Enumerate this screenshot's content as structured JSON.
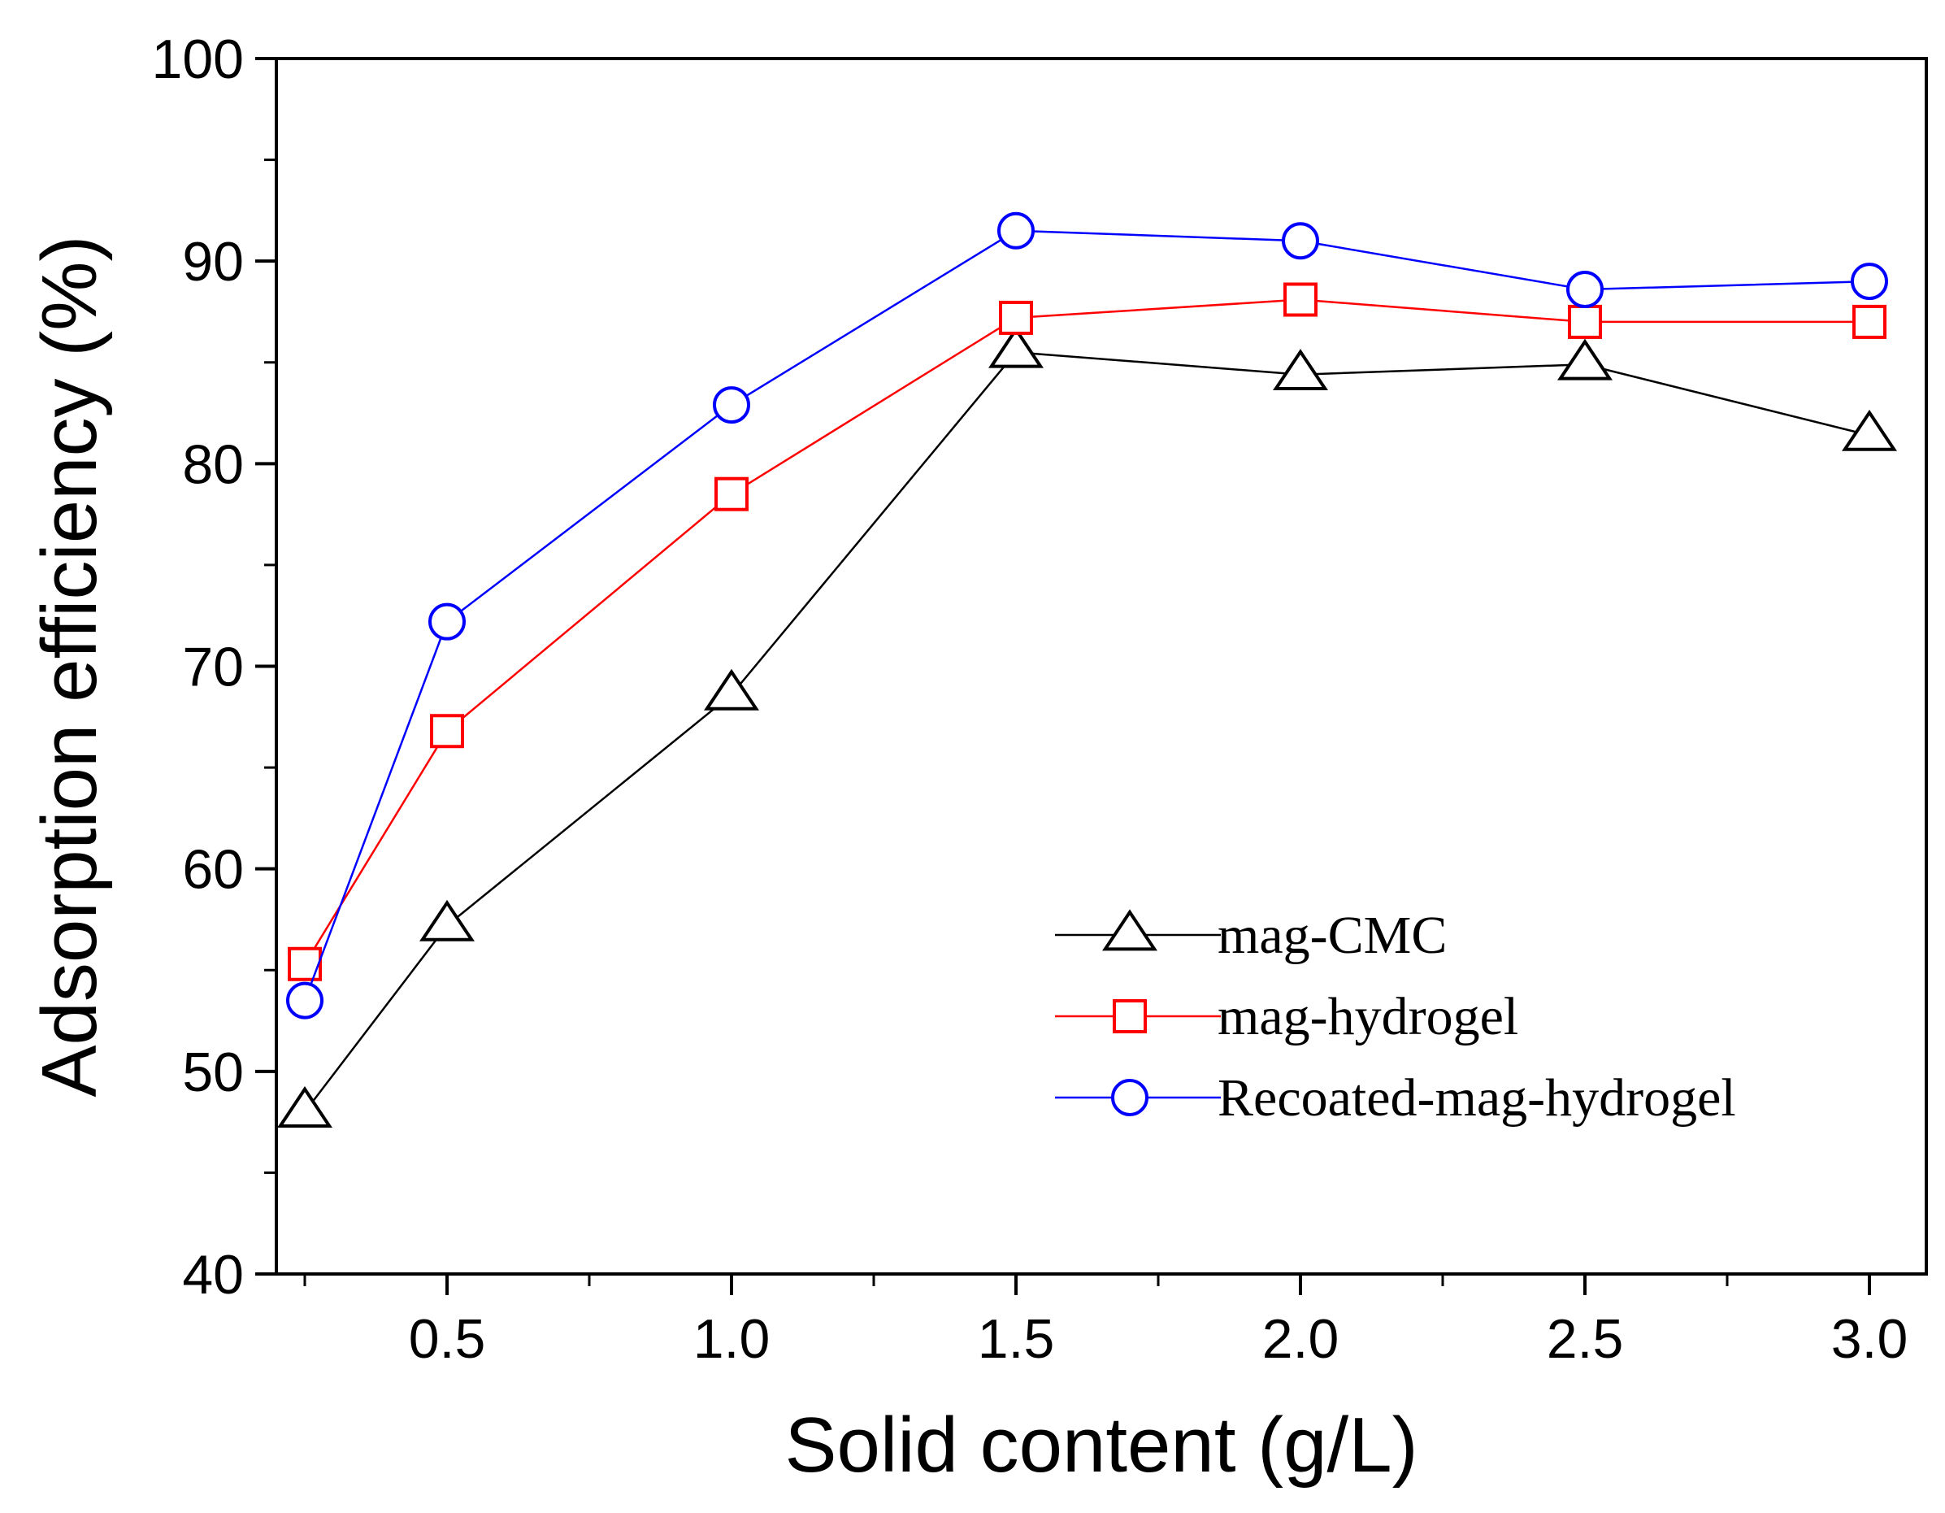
{
  "chart_data": {
    "type": "line",
    "title": "",
    "xlabel": "Solid content (g/L)",
    "ylabel": "Adsorption efficiency (%)",
    "xlim": [
      0.2,
      3.1
    ],
    "ylim": [
      40,
      100
    ],
    "x_ticks": [
      {
        "value": 0.5,
        "label": "0.5"
      },
      {
        "value": 1.0,
        "label": "1.0"
      },
      {
        "value": 1.5,
        "label": "1.5"
      },
      {
        "value": 2.0,
        "label": "2.0"
      },
      {
        "value": 2.5,
        "label": "2.5"
      },
      {
        "value": 3.0,
        "label": "3.0"
      }
    ],
    "x_minor_ticks": [
      0.25,
      0.75,
      1.25,
      1.75,
      2.25,
      2.75
    ],
    "y_ticks": [
      {
        "value": 40,
        "label": "40"
      },
      {
        "value": 50,
        "label": "50"
      },
      {
        "value": 60,
        "label": "60"
      },
      {
        "value": 70,
        "label": "70"
      },
      {
        "value": 80,
        "label": "80"
      },
      {
        "value": 90,
        "label": "90"
      },
      {
        "value": 100,
        "label": "100"
      }
    ],
    "y_minor_ticks": [
      45,
      55,
      65,
      75,
      85,
      95
    ],
    "grid": false,
    "legend": {
      "placement": "bottom-right"
    },
    "x": [
      0.25,
      0.5,
      1.0,
      1.5,
      2.0,
      2.5,
      3.0
    ],
    "series": [
      {
        "name": "mag-CMC",
        "color": "#000000",
        "marker": "triangle",
        "values": [
          48.0,
          57.2,
          68.6,
          85.5,
          84.4,
          84.9,
          81.4
        ]
      },
      {
        "name": "mag-hydrogel",
        "color": "#ff0000",
        "marker": "square",
        "values": [
          55.3,
          66.8,
          78.5,
          87.2,
          88.1,
          87.0,
          87.0
        ]
      },
      {
        "name": "Recoated-mag-hydrogel",
        "color": "#0000ff",
        "marker": "circle",
        "values": [
          53.5,
          72.2,
          82.9,
          91.5,
          91.0,
          88.6,
          89.0
        ]
      }
    ]
  }
}
